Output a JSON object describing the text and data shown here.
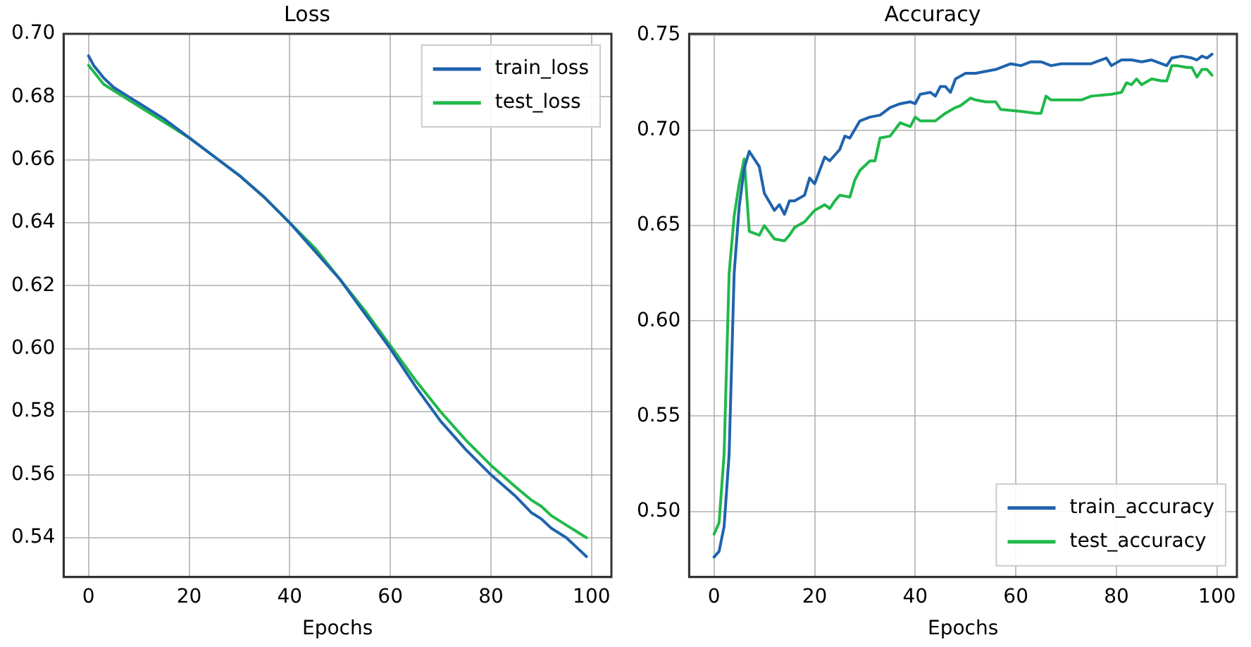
{
  "chart_data": [
    {
      "type": "line",
      "title": "Loss",
      "xlabel": "Epochs",
      "xlim": [
        -4.95,
        103.95
      ],
      "ylim": [
        0.5275,
        0.7
      ],
      "xticks": [
        0,
        20,
        40,
        60,
        80,
        100
      ],
      "yticks": [
        0.54,
        0.56,
        0.58,
        {
          "value": 0.6,
          "label": "0.60"
        },
        0.62,
        0.64,
        0.66,
        0.68,
        {
          "value": 0.7,
          "label": "0.70"
        }
      ],
      "grid": true,
      "legend": "top right",
      "line_style": "solid",
      "marker": "none",
      "series": [
        {
          "name": "train_loss",
          "color": "#1f63ad",
          "x": [
            0,
            1,
            2,
            3,
            5,
            8,
            10,
            15,
            20,
            25,
            30,
            35,
            40,
            45,
            50,
            55,
            60,
            65,
            70,
            75,
            80,
            85,
            88,
            90,
            92,
            95,
            97,
            99
          ],
          "values": [
            0.693,
            0.69,
            0.688,
            0.686,
            0.683,
            0.68,
            0.678,
            0.673,
            0.667,
            0.661,
            0.655,
            0.648,
            0.64,
            0.631,
            0.622,
            0.611,
            0.6,
            0.588,
            0.577,
            0.568,
            0.56,
            0.553,
            0.548,
            0.546,
            0.543,
            0.54,
            0.537,
            0.534
          ]
        },
        {
          "name": "test_loss",
          "color": "#20b94a",
          "x": [
            0,
            1,
            2,
            3,
            5,
            8,
            10,
            15,
            20,
            25,
            30,
            35,
            40,
            45,
            50,
            55,
            60,
            65,
            70,
            75,
            80,
            85,
            88,
            90,
            92,
            95,
            97,
            99
          ],
          "values": [
            0.69,
            0.688,
            0.686,
            0.684,
            0.682,
            0.679,
            0.677,
            0.672,
            0.667,
            0.661,
            0.655,
            0.648,
            0.64,
            0.632,
            0.622,
            0.612,
            0.601,
            0.59,
            0.58,
            0.571,
            0.563,
            0.556,
            0.552,
            0.55,
            0.547,
            0.544,
            0.542,
            0.54
          ]
        }
      ]
    },
    {
      "type": "line",
      "title": "Accuracy",
      "xlabel": "Epochs",
      "xlim": [
        -4.95,
        103.95
      ],
      "ylim": [
        0.4655,
        0.7507
      ],
      "xticks": [
        0,
        20,
        40,
        60,
        80,
        100
      ],
      "yticks": [
        {
          "value": 0.5,
          "label": "0.50"
        },
        0.55,
        {
          "value": 0.6,
          "label": "0.60"
        },
        0.65,
        {
          "value": 0.7,
          "label": "0.70"
        },
        0.75
      ],
      "grid": true,
      "legend": "bottom right",
      "line_style": "solid",
      "marker": "none",
      "series": [
        {
          "name": "train_accuracy",
          "color": "#1f63ad",
          "x": [
            0,
            1,
            2,
            3,
            4,
            5,
            6,
            7,
            9,
            10,
            12,
            13,
            14,
            15,
            16,
            18,
            19,
            20,
            22,
            23,
            25,
            26,
            27,
            29,
            31,
            33,
            35,
            37,
            39,
            40,
            41,
            43,
            44,
            45,
            46,
            47,
            48,
            50,
            52,
            54,
            56,
            58,
            59,
            61,
            63,
            65,
            67,
            69,
            71,
            73,
            75,
            76,
            78,
            79,
            81,
            83,
            85,
            87,
            90,
            91,
            93,
            95,
            96,
            97,
            98,
            99
          ],
          "values": [
            0.476,
            0.479,
            0.492,
            0.53,
            0.625,
            0.66,
            0.68,
            0.689,
            0.681,
            0.667,
            0.658,
            0.661,
            0.656,
            0.663,
            0.663,
            0.666,
            0.675,
            0.672,
            0.686,
            0.684,
            0.69,
            0.697,
            0.696,
            0.705,
            0.707,
            0.708,
            0.712,
            0.714,
            0.715,
            0.714,
            0.719,
            0.72,
            0.718,
            0.723,
            0.723,
            0.72,
            0.727,
            0.73,
            0.73,
            0.731,
            0.732,
            0.734,
            0.735,
            0.734,
            0.736,
            0.736,
            0.734,
            0.735,
            0.735,
            0.735,
            0.735,
            0.736,
            0.738,
            0.734,
            0.737,
            0.737,
            0.736,
            0.737,
            0.734,
            0.738,
            0.739,
            0.738,
            0.737,
            0.739,
            0.738,
            0.74
          ]
        },
        {
          "name": "test_accuracy",
          "color": "#20b94a",
          "x": [
            0,
            1,
            2,
            3,
            4,
            5,
            6,
            7,
            9,
            10,
            12,
            14,
            15,
            16,
            18,
            20,
            22,
            23,
            24,
            25,
            27,
            28,
            29,
            31,
            32,
            33,
            35,
            37,
            38,
            39,
            40,
            41,
            44,
            46,
            48,
            49,
            51,
            52,
            54,
            56,
            57,
            61,
            64,
            65,
            66,
            67,
            73,
            75,
            79,
            81,
            82,
            83,
            84,
            85,
            87,
            89,
            90,
            91,
            92,
            94,
            95,
            96,
            97,
            98,
            99
          ],
          "values": [
            0.488,
            0.494,
            0.53,
            0.625,
            0.655,
            0.672,
            0.685,
            0.647,
            0.645,
            0.65,
            0.643,
            0.642,
            0.645,
            0.649,
            0.652,
            0.658,
            0.661,
            0.659,
            0.663,
            0.666,
            0.665,
            0.674,
            0.679,
            0.684,
            0.684,
            0.696,
            0.697,
            0.704,
            0.703,
            0.702,
            0.707,
            0.705,
            0.705,
            0.709,
            0.712,
            0.713,
            0.717,
            0.716,
            0.715,
            0.715,
            0.711,
            0.71,
            0.709,
            0.709,
            0.718,
            0.716,
            0.716,
            0.718,
            0.719,
            0.72,
            0.725,
            0.724,
            0.727,
            0.724,
            0.727,
            0.726,
            0.726,
            0.734,
            0.734,
            0.733,
            0.733,
            0.728,
            0.732,
            0.732,
            0.729
          ]
        }
      ]
    }
  ]
}
